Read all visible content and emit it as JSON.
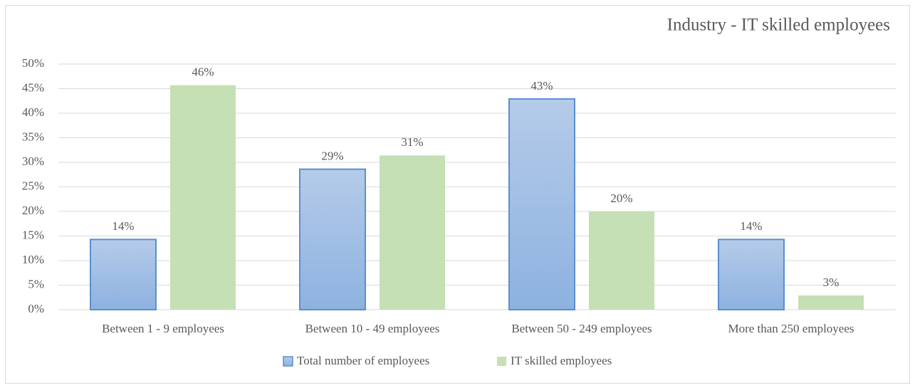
{
  "chart_data": {
    "type": "bar",
    "title": "Industry - IT skilled employees",
    "categories": [
      "Between 1 - 9 employees",
      "Between 10 - 49 employees",
      "Between 50 - 249 employees",
      "More than 250 employees"
    ],
    "series": [
      {
        "name": "Total number of employees",
        "color": "#9dbde6",
        "values": [
          14.3,
          28.6,
          42.9,
          14.3
        ],
        "value_labels": [
          "14%",
          "29%",
          "43%",
          "14%"
        ]
      },
      {
        "name": "IT skilled employees",
        "color": "#c5e0b4",
        "values": [
          45.7,
          31.4,
          20.0,
          2.9
        ],
        "value_labels": [
          "46%",
          "31%",
          "20%",
          "3%"
        ]
      }
    ],
    "ylim": [
      0,
      50
    ],
    "yticks": [
      {
        "value": 0,
        "label": "0%"
      },
      {
        "value": 5,
        "label": "5%"
      },
      {
        "value": 10,
        "label": "10%"
      },
      {
        "value": 15,
        "label": "15%"
      },
      {
        "value": 20,
        "label": "20%"
      },
      {
        "value": 25,
        "label": "25%"
      },
      {
        "value": 30,
        "label": "30%"
      },
      {
        "value": 35,
        "label": "35%"
      },
      {
        "value": 40,
        "label": "40%"
      },
      {
        "value": 45,
        "label": "45%"
      },
      {
        "value": 50,
        "label": "50%"
      }
    ],
    "grid": true,
    "legend": "bottom"
  }
}
